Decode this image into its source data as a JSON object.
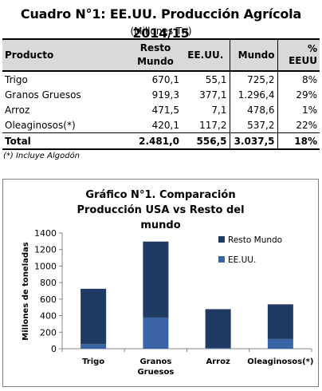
{
  "table": {
    "title": "Cuadro N°1: EE.UU. Producción Agrícola 2014/15",
    "subtitle": "(Millones Tn)",
    "headers": [
      "Producto",
      "Resto Mundo",
      "EE.UU.",
      "Mundo",
      "% EEUU"
    ],
    "rows": [
      [
        "Trigo",
        "670,1",
        "55,1",
        "725,2",
        "8%"
      ],
      [
        "Granos Gruesos",
        "919,3",
        "377,1",
        "1.296,4",
        "29%"
      ],
      [
        "Arroz",
        "471,5",
        "7,1",
        "478,6",
        "1%"
      ],
      [
        "Oleaginosos(*)",
        "420,1",
        "117,2",
        "537,2",
        "22%"
      ]
    ],
    "total": [
      "Total",
      "2.481,0",
      "556,5",
      "3.037,5",
      "18%"
    ],
    "footnote": "(*) Incluye Algodón"
  },
  "chart_data": {
    "type": "bar",
    "stacked": true,
    "title": "Gráfico N°1. Comparación Producción USA vs Resto del mundo",
    "ylabel": "Millones de toneladas",
    "xlabel": "",
    "categories": [
      "Trigo",
      "Granos Gruesos",
      "Arroz",
      "Oleaginosos(*)"
    ],
    "series": [
      {
        "name": "EE.UU.",
        "values": [
          55.1,
          377.1,
          7.1,
          117.2
        ],
        "color": "#3b64a6"
      },
      {
        "name": "Resto Mundo",
        "values": [
          670.1,
          919.3,
          471.5,
          420.1
        ],
        "color": "#1f3a63"
      }
    ],
    "ylim": [
      0,
      1400
    ],
    "yticks": [
      0,
      200,
      400,
      600,
      800,
      1000,
      1200,
      1400
    ],
    "grid": false,
    "legend": "right",
    "legend_order": [
      "Resto Mundo",
      "EE.UU."
    ]
  }
}
